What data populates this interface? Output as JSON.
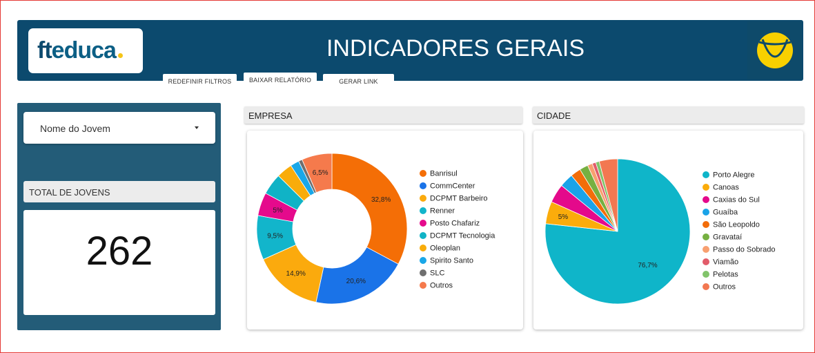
{
  "header": {
    "logo_ft": "ft",
    "logo_educa": "educa",
    "title": "INDICADORES GERAIS"
  },
  "toolbar": {
    "reset_label": "REDEFINIR FILTROS",
    "download_label": "BAIXAR RELATÓRIO",
    "link_label": "GERAR LINK"
  },
  "filter": {
    "label": "Nome do Jovem"
  },
  "total": {
    "label": "TOTAL DE JOVENS",
    "value": "262"
  },
  "sections": {
    "empresa": "EMPRESA",
    "cidade": "CIDADE"
  },
  "chart_data": [
    {
      "type": "pie",
      "donut": true,
      "title": "EMPRESA",
      "legend_position": "right",
      "categories": [
        "Banrisul",
        "CommCenter",
        "DCPMT Barbeiro",
        "Renner",
        "Posto Chafariz",
        "DCPMT Tecnologia",
        "Oleoplan",
        "Spirito Santo",
        "SLC",
        "Outros"
      ],
      "values": [
        32.8,
        20.6,
        14.9,
        9.5,
        5.0,
        4.6,
        3.4,
        1.9,
        0.8,
        6.5
      ],
      "labels": [
        "32,8%",
        "20,6%",
        "14,9%",
        "9,5%",
        "5%",
        "",
        "",
        "",
        "",
        "6,5%"
      ],
      "colors": [
        "#f46e06",
        "#1a73e8",
        "#fbaa0d",
        "#12b5cb",
        "#e50a8c",
        "#10b3c6",
        "#f9ac0a",
        "#19a7e8",
        "#6f6f6f",
        "#f57a4c"
      ]
    },
    {
      "type": "pie",
      "donut": false,
      "title": "CIDADE",
      "legend_position": "right",
      "categories": [
        "Porto Alegre",
        "Canoas",
        "Caxias do Sul",
        "Guaíba",
        "São Leopoldo",
        "Gravataí",
        "Passo do Sobrado",
        "Viamão",
        "Pelotas",
        "Outros"
      ],
      "values": [
        76.7,
        5.0,
        4.2,
        3.1,
        2.3,
        1.9,
        1.1,
        0.8,
        0.8,
        4.1
      ],
      "labels": [
        "76,7%",
        "5%",
        "",
        "",
        "",
        "",
        "",
        "",
        "",
        ""
      ],
      "colors": [
        "#0fb5c9",
        "#fbac0b",
        "#e4098b",
        "#1aa3e8",
        "#f26d0a",
        "#76b041",
        "#f8a070",
        "#e25c6a",
        "#82c46b",
        "#f27851"
      ]
    }
  ]
}
